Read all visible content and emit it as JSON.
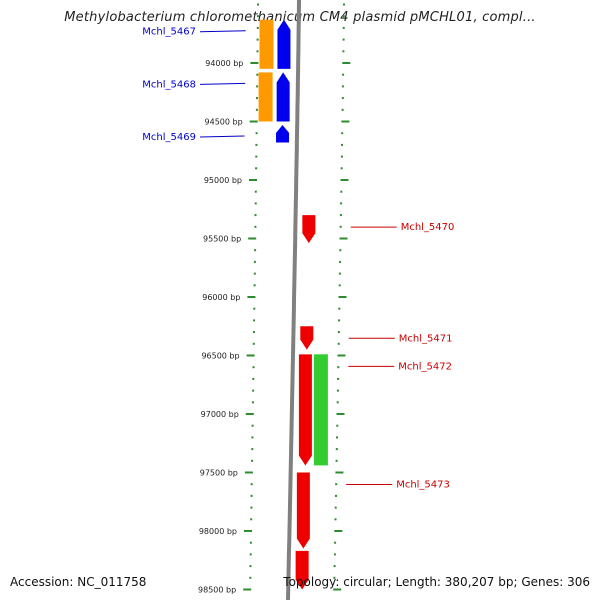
{
  "title": "Methylobacterium chloromethanicum CM4 plasmid pMCHL01, compl...",
  "footer": {
    "accession": "Accession: NC_011758",
    "summary": "Topology: circular; Length: 380,207 bp; Genes: 306"
  },
  "colors": {
    "backbone": "#808080",
    "tick": "#2e8b2e",
    "label_forward": "#0000cc",
    "label_reverse": "#cc0000",
    "orange": "#ff9900",
    "blue": "#0000ee",
    "red": "#ee0000",
    "green": "#33cc33"
  },
  "axis": {
    "start_bp": 93500,
    "end_bp": 98500,
    "ticks": [
      {
        "bp": 94000,
        "label": "94000 bp"
      },
      {
        "bp": 94500,
        "label": "94500 bp"
      },
      {
        "bp": 95000,
        "label": "95000 bp"
      },
      {
        "bp": 95500,
        "label": "95500 bp"
      },
      {
        "bp": 96000,
        "label": "96000 bp"
      },
      {
        "bp": 96500,
        "label": "96500 bp"
      },
      {
        "bp": 97000,
        "label": "97000 bp"
      },
      {
        "bp": 97500,
        "label": "97500 bp"
      },
      {
        "bp": 98000,
        "label": "98000 bp"
      },
      {
        "bp": 98500,
        "label": "98500 bp"
      }
    ]
  },
  "genes": [
    {
      "name": "Mchl_5467",
      "strand": "+",
      "start": 93630,
      "end": 94050,
      "track": "blue",
      "shade": "orange"
    },
    {
      "name": "Mchl_5468",
      "strand": "+",
      "start": 94080,
      "end": 94500,
      "track": "blue",
      "shade": "orange"
    },
    {
      "name": "Mchl_5469",
      "strand": "+",
      "start": 94530,
      "end": 94680,
      "track": "blue"
    },
    {
      "name": "Mchl_5470",
      "strand": "-",
      "start": 95300,
      "end": 95540,
      "track": "red"
    },
    {
      "name": "Mchl_5471",
      "strand": "-",
      "start": 96250,
      "end": 96450,
      "track": "red"
    },
    {
      "name": "Mchl_5472",
      "strand": "-",
      "start": 96490,
      "end": 97440,
      "track": "red",
      "shade": "green"
    },
    {
      "name": "Mchl_5473",
      "strand": "-",
      "start": 97500,
      "end": 98150,
      "track": "red"
    },
    {
      "name": "",
      "strand": "-",
      "start": 98170,
      "end": 98500,
      "track": "red"
    }
  ]
}
